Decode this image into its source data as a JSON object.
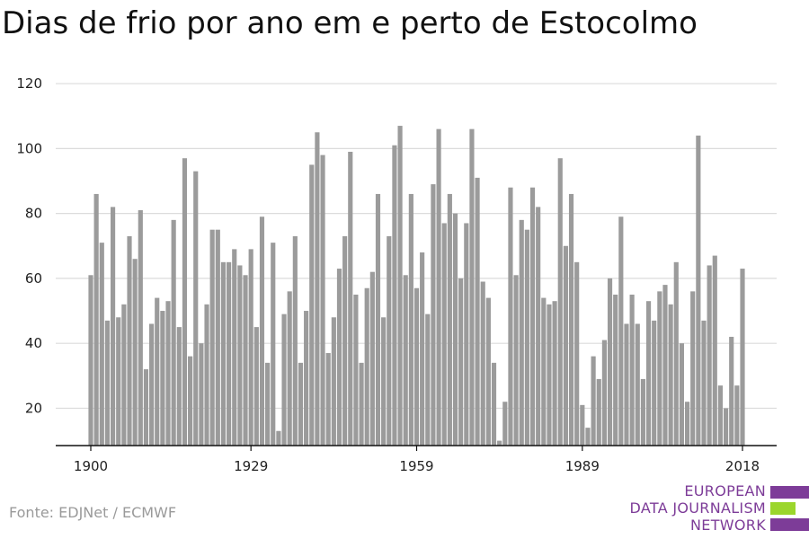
{
  "title": "Dias de frio por ano em e perto de Estocolmo",
  "source": "Fonte: EDJNet / ECMWF",
  "logo": {
    "lines": [
      "EUROPEAN",
      "DATA JOURNALISM",
      "NETWORK"
    ],
    "colors": {
      "purple": "#7d3c98",
      "green": "#9bd62c"
    }
  },
  "colors": {
    "bar": "#9b9b9b",
    "grid": "#dcdcdc",
    "axis": "#111111"
  },
  "chart_data": {
    "type": "bar",
    "title": "Dias de frio por ano em e perto de Estocolmo",
    "xlabel": "",
    "ylabel": "",
    "ylim": [
      8.5,
      125
    ],
    "yticks": [
      20,
      40,
      60,
      80,
      100,
      120
    ],
    "xticks": [
      1900,
      1929,
      1959,
      1989,
      2018
    ],
    "grid": true,
    "x_start": 1900,
    "x_end": 2018,
    "values": [
      61,
      86,
      71,
      47,
      82,
      48,
      52,
      73,
      66,
      81,
      32,
      46,
      54,
      50,
      53,
      78,
      45,
      97,
      36,
      93,
      40,
      52,
      75,
      75,
      65,
      65,
      69,
      64,
      61,
      69,
      45,
      79,
      34,
      71,
      13,
      49,
      56,
      73,
      34,
      50,
      95,
      105,
      98,
      37,
      48,
      63,
      73,
      99,
      55,
      34,
      57,
      62,
      86,
      48,
      73,
      101,
      107,
      61,
      86,
      57,
      68,
      49,
      89,
      106,
      77,
      86,
      80,
      60,
      77,
      106,
      91,
      59,
      54,
      34,
      10,
      22,
      88,
      61,
      78,
      75,
      88,
      82,
      54,
      52,
      53,
      97,
      70,
      86,
      65,
      21,
      14,
      36,
      29,
      41,
      60,
      55,
      79,
      46,
      55,
      46,
      29,
      53,
      47,
      56,
      58,
      52,
      65,
      40,
      22,
      56,
      104,
      47,
      64,
      67,
      27,
      20,
      42,
      27,
      63
    ]
  }
}
